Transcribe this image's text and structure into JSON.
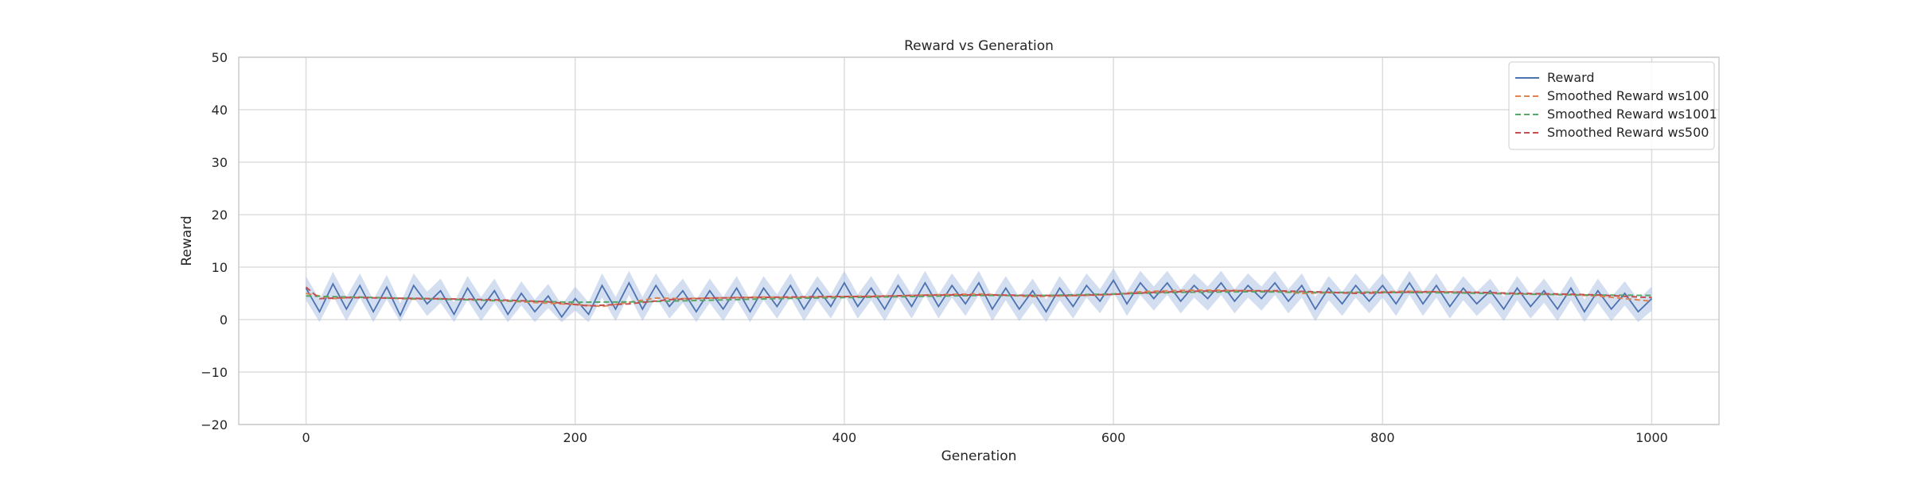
{
  "chart_data": {
    "type": "line",
    "title": "Reward vs Generation",
    "xlabel": "Generation",
    "ylabel": "Reward",
    "xlim": [
      -50,
      1050
    ],
    "ylim": [
      -20,
      50
    ],
    "xticks": [
      0,
      200,
      400,
      600,
      800,
      1000
    ],
    "yticks": [
      -20,
      -10,
      0,
      10,
      20,
      30,
      40,
      50
    ],
    "grid": true,
    "legend_position": "top-right",
    "band_color": "#aec3e6",
    "series": [
      {
        "name": "Reward",
        "color": "#4c72b0",
        "style": "solid",
        "x": [
          0,
          10,
          20,
          30,
          40,
          50,
          60,
          70,
          80,
          90,
          100,
          110,
          120,
          130,
          140,
          150,
          160,
          170,
          180,
          190,
          200,
          210,
          220,
          230,
          240,
          250,
          260,
          270,
          280,
          290,
          300,
          310,
          320,
          330,
          340,
          350,
          360,
          370,
          380,
          390,
          400,
          410,
          420,
          430,
          440,
          450,
          460,
          470,
          480,
          490,
          500,
          510,
          520,
          530,
          540,
          550,
          560,
          570,
          580,
          590,
          600,
          610,
          620,
          630,
          640,
          650,
          660,
          670,
          680,
          690,
          700,
          710,
          720,
          730,
          740,
          750,
          760,
          770,
          780,
          790,
          800,
          810,
          820,
          830,
          840,
          850,
          860,
          870,
          880,
          890,
          900,
          910,
          920,
          930,
          940,
          950,
          960,
          970,
          980,
          990,
          1000
        ],
        "values": [
          6.0,
          1.5,
          6.8,
          2.0,
          6.5,
          1.5,
          6.2,
          0.8,
          6.5,
          3.0,
          5.5,
          1.0,
          6.0,
          2.0,
          5.5,
          1.0,
          5.0,
          1.5,
          4.5,
          0.5,
          4.0,
          1.0,
          6.5,
          2.0,
          7.0,
          2.0,
          6.5,
          2.5,
          5.5,
          1.5,
          5.5,
          2.0,
          6.0,
          1.5,
          6.0,
          2.5,
          6.5,
          2.0,
          6.0,
          2.5,
          7.0,
          2.5,
          6.0,
          2.0,
          6.5,
          2.5,
          7.0,
          2.5,
          6.5,
          3.0,
          7.0,
          2.0,
          6.0,
          2.0,
          5.5,
          1.5,
          6.0,
          2.5,
          6.5,
          3.5,
          7.5,
          3.0,
          7.0,
          4.0,
          7.0,
          3.5,
          6.5,
          4.0,
          7.0,
          3.5,
          6.5,
          4.0,
          7.0,
          3.5,
          6.5,
          2.0,
          6.0,
          3.0,
          6.5,
          3.5,
          6.5,
          3.0,
          7.0,
          3.0,
          6.5,
          2.5,
          6.0,
          3.0,
          5.5,
          2.0,
          6.0,
          2.5,
          5.5,
          2.0,
          6.0,
          1.5,
          5.5,
          2.0,
          5.0,
          1.5,
          4.0
        ]
      },
      {
        "name": "Smoothed Reward ws100",
        "color": "#dd8452",
        "style": "dashed",
        "x": [
          0,
          20,
          40,
          60,
          80,
          100,
          120,
          140,
          160,
          180,
          200,
          220,
          240,
          260,
          280,
          300,
          320,
          340,
          360,
          380,
          400,
          420,
          440,
          460,
          480,
          500,
          520,
          540,
          560,
          580,
          600,
          620,
          640,
          660,
          680,
          700,
          720,
          740,
          760,
          780,
          800,
          820,
          840,
          860,
          880,
          900,
          920,
          940,
          960,
          980,
          1000
        ],
        "values": [
          5.0,
          4.0,
          4.3,
          4.1,
          3.9,
          4.0,
          3.8,
          3.6,
          3.4,
          3.1,
          2.9,
          2.5,
          3.3,
          4.1,
          4.0,
          4.1,
          4.2,
          4.3,
          4.2,
          4.3,
          4.4,
          4.5,
          4.5,
          4.7,
          4.8,
          4.9,
          4.6,
          4.4,
          4.5,
          4.6,
          4.8,
          5.3,
          5.5,
          5.6,
          5.6,
          5.5,
          5.4,
          5.0,
          5.1,
          5.2,
          5.3,
          5.4,
          5.3,
          5.2,
          5.0,
          4.9,
          4.8,
          4.7,
          4.5,
          4.0,
          3.5
        ]
      },
      {
        "name": "Smoothed Reward ws1001",
        "color": "#55a868",
        "style": "dashed",
        "x": [
          0,
          100,
          150,
          200,
          250,
          300,
          350,
          400,
          450,
          500,
          550,
          600,
          650,
          700,
          750,
          800,
          850,
          900,
          950,
          1000
        ],
        "values": [
          4.5,
          3.9,
          3.6,
          3.3,
          3.4,
          3.7,
          4.0,
          4.2,
          4.4,
          4.6,
          4.6,
          4.9,
          5.2,
          5.3,
          5.2,
          5.2,
          5.1,
          4.9,
          4.7,
          4.6
        ]
      },
      {
        "name": "Smoothed Reward ws500",
        "color": "#c44e52",
        "style": "dashed",
        "x": [
          0,
          10,
          30,
          60,
          90,
          120,
          150,
          180,
          210,
          240,
          270,
          300,
          330,
          360,
          390,
          420,
          450,
          480,
          510,
          540,
          570,
          600,
          630,
          660,
          690,
          720,
          750,
          780,
          810,
          840,
          870,
          900,
          930,
          960,
          990,
          1000
        ],
        "values": [
          6.2,
          4.0,
          4.2,
          4.1,
          4.0,
          3.9,
          3.7,
          3.4,
          2.6,
          3.0,
          3.8,
          4.1,
          4.2,
          4.3,
          4.4,
          4.4,
          4.6,
          4.7,
          4.7,
          4.6,
          4.6,
          4.8,
          5.2,
          5.4,
          5.5,
          5.5,
          5.3,
          5.0,
          5.2,
          5.3,
          5.2,
          5.0,
          4.9,
          4.7,
          4.3,
          4.2
        ]
      }
    ]
  }
}
